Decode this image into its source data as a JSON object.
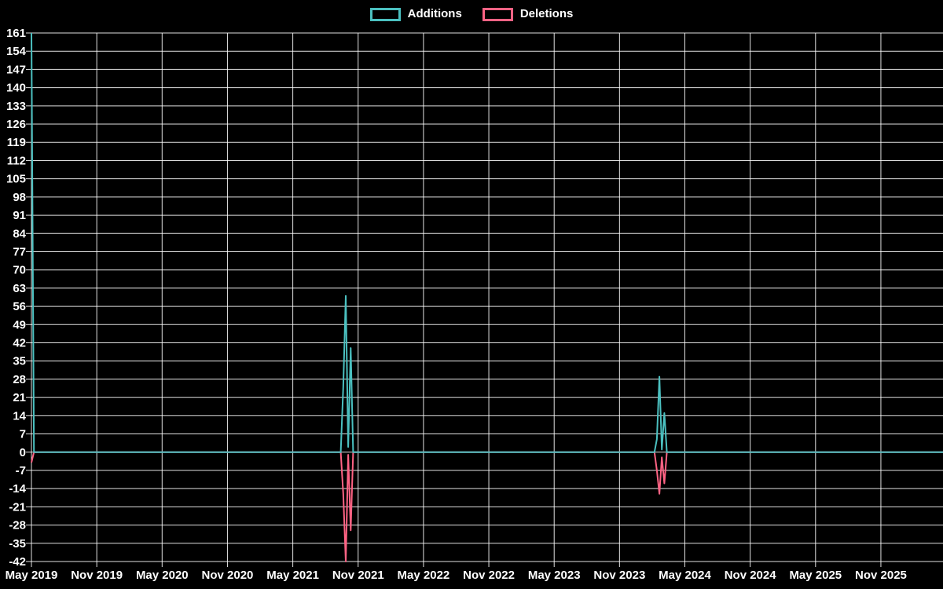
{
  "legend": {
    "items": [
      {
        "label": "Additions",
        "color": "#4bc0c0"
      },
      {
        "label": "Deletions",
        "color": "#ff6384"
      }
    ]
  },
  "colors": {
    "background": "#000000",
    "grid": "rgba(255,255,255,0.88)",
    "text": "#ffffff",
    "additions": "#4bc0c0",
    "deletions": "#ff6384"
  },
  "chart_data": {
    "type": "line",
    "title": "",
    "xlabel": "",
    "ylabel": "",
    "legend_position": "top",
    "grid": true,
    "y_axis": {
      "min": -42,
      "max": 161,
      "step": 7,
      "ticks": [
        161,
        154,
        147,
        140,
        133,
        126,
        119,
        112,
        105,
        98,
        91,
        84,
        77,
        70,
        63,
        56,
        49,
        42,
        35,
        28,
        21,
        14,
        7,
        0,
        -7,
        -14,
        -21,
        -28,
        -35,
        -42
      ]
    },
    "x_axis": {
      "ticks": [
        {
          "label": "May 2019",
          "t": 2019.333
        },
        {
          "label": "Nov 2019",
          "t": 2019.833
        },
        {
          "label": "May 2020",
          "t": 2020.333
        },
        {
          "label": "Nov 2020",
          "t": 2020.833
        },
        {
          "label": "May 2021",
          "t": 2021.333
        },
        {
          "label": "Nov 2021",
          "t": 2021.833
        },
        {
          "label": "May 2022",
          "t": 2022.333
        },
        {
          "label": "Nov 2022",
          "t": 2022.833
        },
        {
          "label": "May 2023",
          "t": 2023.333
        },
        {
          "label": "Nov 2023",
          "t": 2023.833
        },
        {
          "label": "May 2024",
          "t": 2024.333
        },
        {
          "label": "Nov 2024",
          "t": 2024.833
        },
        {
          "label": "May 2025",
          "t": 2025.333
        },
        {
          "label": "Nov 2025",
          "t": 2025.833
        }
      ],
      "t_start": 2019.333,
      "t_end": 2026.31
    },
    "series": [
      {
        "name": "Additions",
        "color": "#4bc0c0",
        "points": [
          [
            2019.333,
            161
          ],
          [
            2019.352,
            0
          ],
          [
            2021.7,
            0
          ],
          [
            2021.719,
            25
          ],
          [
            2021.738,
            60
          ],
          [
            2021.757,
            2
          ],
          [
            2021.776,
            40
          ],
          [
            2021.795,
            0
          ],
          [
            2024.1,
            0
          ],
          [
            2024.119,
            5
          ],
          [
            2024.138,
            29
          ],
          [
            2024.157,
            1
          ],
          [
            2024.176,
            15
          ],
          [
            2024.195,
            0
          ],
          [
            2026.31,
            0
          ]
        ]
      },
      {
        "name": "Deletions",
        "color": "#ff6384",
        "points": [
          [
            2019.333,
            -4
          ],
          [
            2019.352,
            0
          ],
          [
            2021.7,
            0
          ],
          [
            2021.719,
            -16
          ],
          [
            2021.738,
            -42
          ],
          [
            2021.757,
            -1
          ],
          [
            2021.776,
            -30
          ],
          [
            2021.795,
            0
          ],
          [
            2024.1,
            0
          ],
          [
            2024.119,
            -7
          ],
          [
            2024.138,
            -16
          ],
          [
            2024.157,
            -2
          ],
          [
            2024.176,
            -12
          ],
          [
            2024.195,
            0
          ],
          [
            2026.31,
            0
          ]
        ]
      }
    ]
  }
}
